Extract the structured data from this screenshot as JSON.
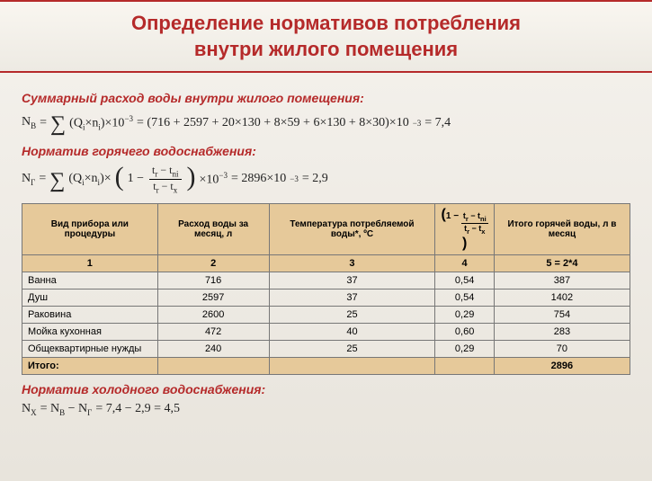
{
  "title": {
    "line1": "Определение нормативов потребления",
    "line2": "внутри жилого помещения"
  },
  "section1": {
    "heading": "Суммарный расход воды внутри жилого помещения:",
    "lhs": "N",
    "lhs_sub": "В",
    "expr": "= (716 + 2597 + 20×130 + 8×59 + 6×130 + 8×30)×10",
    "exp": "−3",
    "result": "= 7,4"
  },
  "section2": {
    "heading": "Норматив горячего водоснабжения:",
    "lhs": "N",
    "lhs_sub": "Г",
    "mid": "= 2896×10",
    "exp": "−3",
    "result": "= 2,9"
  },
  "table": {
    "headers": {
      "c1": "Вид прибора или процедуры",
      "c2": "Расход воды за месяц, л",
      "c3": "Температура потребляемой воды*, ºС",
      "c5": "Итого горячей воды, л в месяц"
    },
    "index_row": {
      "c1": "1",
      "c2": "2",
      "c3": "3",
      "c4": "4",
      "c5": "5 = 2*4"
    },
    "rows": [
      {
        "name": "Ванна",
        "flow": "716",
        "temp": "37",
        "coef": "0,54",
        "hot": "387"
      },
      {
        "name": "Душ",
        "flow": "2597",
        "temp": "37",
        "coef": "0,54",
        "hot": "1402"
      },
      {
        "name": "Раковина",
        "flow": "2600",
        "temp": "25",
        "coef": "0,29",
        "hot": "754"
      },
      {
        "name": "Мойка кухонная",
        "flow": "472",
        "temp": "40",
        "coef": "0,60",
        "hot": "283"
      },
      {
        "name": "Общеквартирные нужды",
        "flow": "240",
        "temp": "25",
        "coef": "0,29",
        "hot": "70"
      }
    ],
    "total_label": "Итого:",
    "total_value": "2896"
  },
  "section3": {
    "heading": "Норматив холодного водоснабжения:",
    "formula_text": "= 7,4 − 2,9 = 4,5"
  },
  "styling": {
    "accent_color": "#b52a2a",
    "header_bg": "#e6c99a",
    "body_bg_top": "#f5f2ed",
    "body_bg_bottom": "#e8e4dc"
  }
}
